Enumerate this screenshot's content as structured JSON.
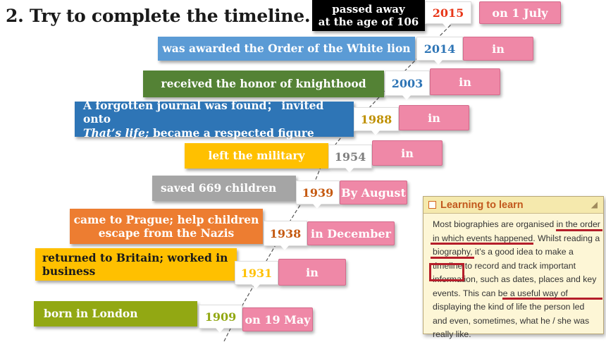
{
  "title": "2. Try to complete the timeline.",
  "events": [
    {
      "text": "passed away\nat the age of 106",
      "year": "2015",
      "answer": "on 1 July",
      "color": "#000000",
      "year_color": "#e8381a"
    },
    {
      "text": "was awarded the Order of the White lion",
      "year": "2014",
      "answer": "in",
      "color": "#5b9bd5",
      "year_color": "#2e75b6"
    },
    {
      "text": "received the honor of knighthood",
      "year": "2003",
      "answer": "in",
      "color": "#548235",
      "year_color": "#2e75b6"
    },
    {
      "text_line1": "A forgotten journal was found； invited onto",
      "text_italic": "That’s life;",
      "text_rest": " became a respected figure",
      "year": "1988",
      "answer": "in",
      "color": "#2e75b6",
      "year_color": "#bf9000"
    },
    {
      "text": "left the military",
      "year": "1954",
      "answer": "in",
      "color": "#ffc000",
      "year_color": "#7f7f7f"
    },
    {
      "text": "saved 669 children",
      "year": "1939",
      "answer": "By August",
      "color": "#a5a5a5",
      "year_color": "#c55a11"
    },
    {
      "text": "came to Prague; help children\nescape from the Nazis",
      "year": "1938",
      "answer": "in December",
      "color": "#ed7d31",
      "year_color": "#c55a11"
    },
    {
      "text": "returned to Britain; worked in\nbusiness",
      "year": "1931",
      "answer": "in",
      "color": "#ffc000",
      "text_color": "#1a1a1a",
      "year_color": "#ffc000"
    },
    {
      "text": "born in London",
      "year": "1909",
      "answer": "on 19 May",
      "color": "#92a813",
      "year_color": "#92a813"
    }
  ],
  "learning": {
    "header": "Learning to learn",
    "body": "Most biographies are organised in the order in which events happened. Whilst reading a biography, it’s a good idea to make a timeline to record and track important information, such as dates, places and key events. This can be a useful way of displaying the kind of life the person led and even, sometimes, what he / she was really like."
  }
}
